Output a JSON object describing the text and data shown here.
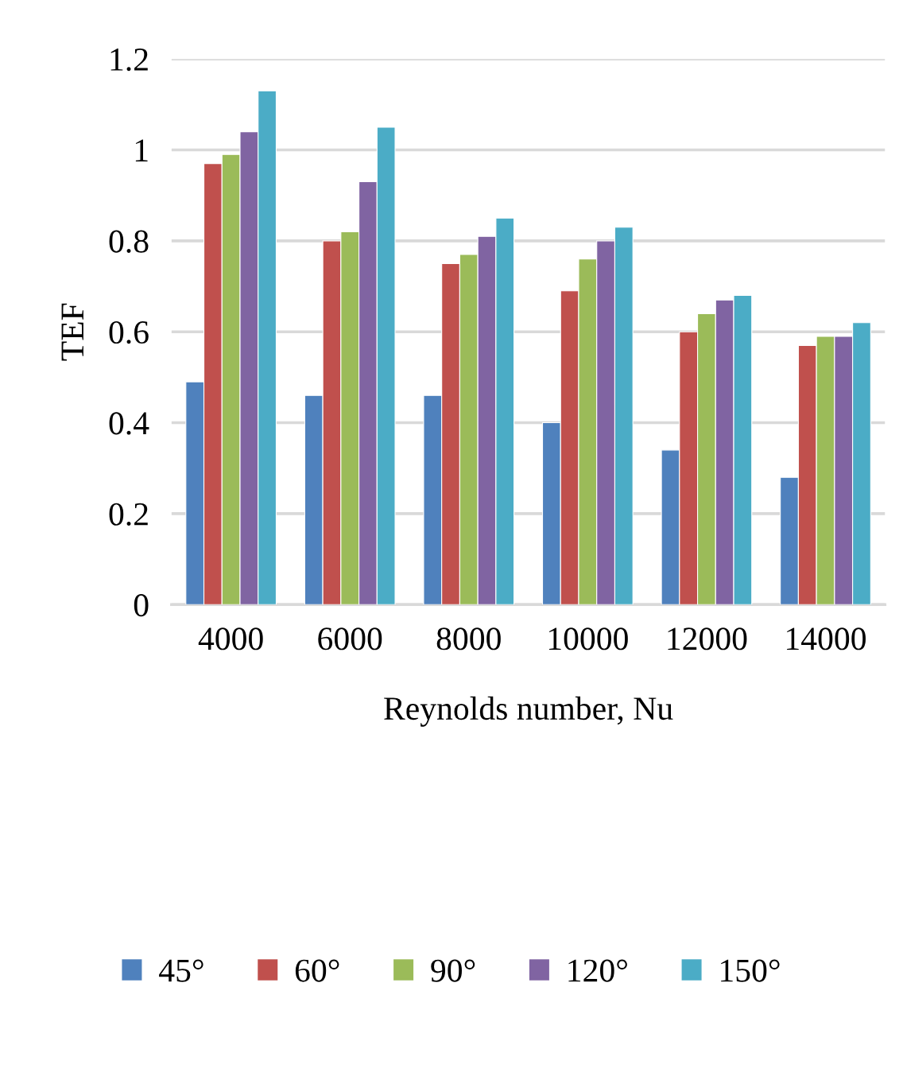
{
  "chart_data": {
    "type": "bar",
    "xlabel": "Reynolds number, Nu",
    "ylabel": "TEF",
    "categories": [
      "4000",
      "6000",
      "8000",
      "10000",
      "12000",
      "14000"
    ],
    "series": [
      {
        "name": "45°",
        "color": "#4f81bd",
        "values": [
          0.49,
          0.46,
          0.46,
          0.4,
          0.34,
          0.28
        ]
      },
      {
        "name": "60°",
        "color": "#c0504d",
        "values": [
          0.97,
          0.8,
          0.75,
          0.69,
          0.6,
          0.57
        ]
      },
      {
        "name": "90°",
        "color": "#9bbb59",
        "values": [
          0.99,
          0.82,
          0.77,
          0.76,
          0.64,
          0.59
        ]
      },
      {
        "name": "120°",
        "color": "#8064a2",
        "values": [
          1.04,
          0.93,
          0.81,
          0.8,
          0.67,
          0.59
        ]
      },
      {
        "name": "150°",
        "color": "#4bacc6",
        "values": [
          1.13,
          1.05,
          0.85,
          0.83,
          0.68,
          0.62
        ]
      }
    ],
    "ylim": [
      0,
      1.2
    ],
    "yticks": [
      0,
      0.2,
      0.4,
      0.6,
      0.8,
      1,
      1.2
    ],
    "grid": "y",
    "legend": "bottom"
  }
}
